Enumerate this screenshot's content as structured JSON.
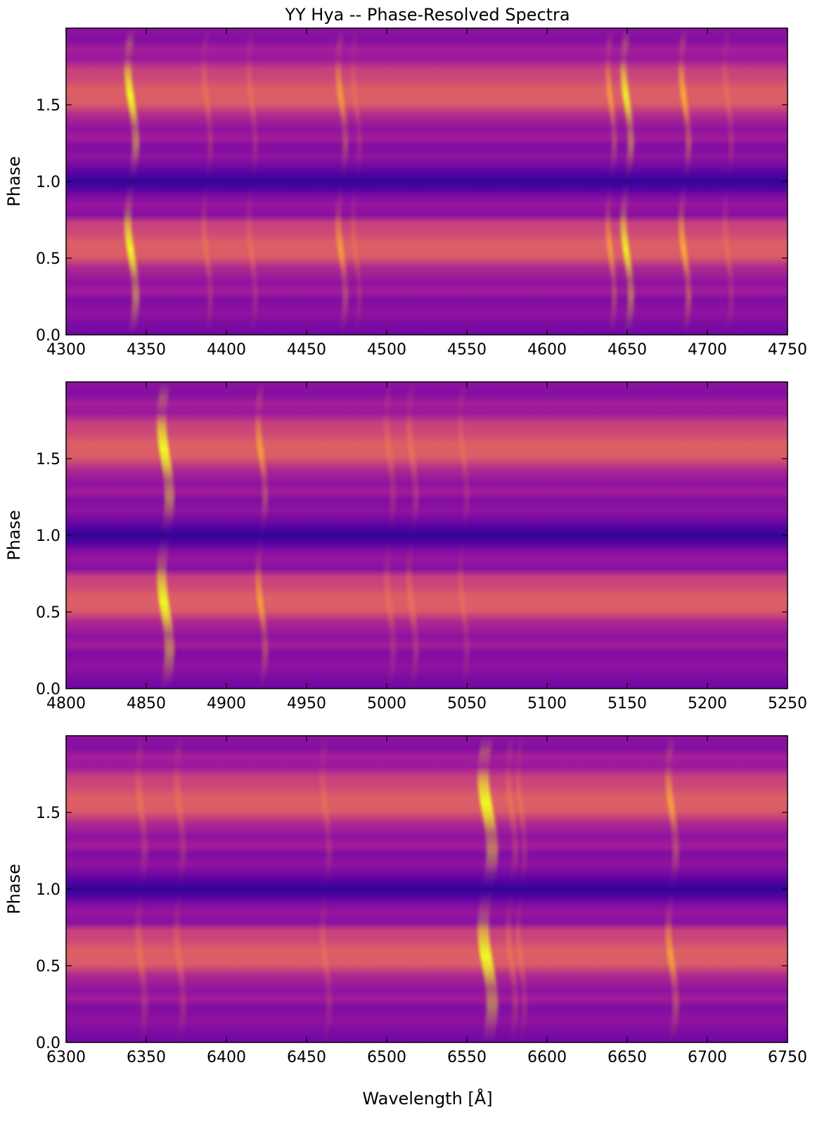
{
  "figure": {
    "title": "YY Hya -- Phase-Resolved Spectra",
    "xlabel": "Wavelength [Å]",
    "ylabel": "Phase",
    "colormap": "plasma",
    "colormap_stops": [
      "#0d0887",
      "#5c01a6",
      "#9c179e",
      "#cc4778",
      "#ed7953",
      "#fdb42f",
      "#f0f921"
    ]
  },
  "chart_data": [
    {
      "type": "heatmap",
      "xlabel": "",
      "ylabel": "Phase",
      "xlim": [
        4300,
        4750
      ],
      "ylim": [
        0.0,
        2.0
      ],
      "xticks": [
        4300,
        4350,
        4400,
        4450,
        4500,
        4550,
        4600,
        4650,
        4700,
        4750
      ],
      "xtick_labels": [
        "4300",
        "4350",
        "4400",
        "4450",
        "4500",
        "4550",
        "4600",
        "4650",
        "4700",
        "4750"
      ],
      "yticks": [
        0.0,
        0.5,
        1.0,
        1.5
      ],
      "ytick_labels": [
        "0.0",
        "0.5",
        "1.0",
        "1.5"
      ],
      "emission_lines": [
        {
          "wavelength": 4341,
          "strength": 1.0,
          "width": 2.2,
          "amplitude": 2.5
        },
        {
          "wavelength": 4388,
          "strength": 0.45,
          "width": 1.6,
          "amplitude": 2.0
        },
        {
          "wavelength": 4416,
          "strength": 0.35,
          "width": 1.6,
          "amplitude": 2.0
        },
        {
          "wavelength": 4472,
          "strength": 0.55,
          "width": 1.8,
          "amplitude": 2.2
        },
        {
          "wavelength": 4481,
          "strength": 0.3,
          "width": 1.4,
          "amplitude": 2.0
        },
        {
          "wavelength": 4640,
          "strength": 0.55,
          "width": 1.6,
          "amplitude": 2.0
        },
        {
          "wavelength": 4650,
          "strength": 0.9,
          "width": 2.0,
          "amplitude": 2.3
        },
        {
          "wavelength": 4686,
          "strength": 0.8,
          "width": 1.8,
          "amplitude": 2.3
        },
        {
          "wavelength": 4713,
          "strength": 0.3,
          "width": 1.6,
          "amplitude": 2.0
        }
      ]
    },
    {
      "type": "heatmap",
      "xlabel": "",
      "ylabel": "Phase",
      "xlim": [
        4800,
        5250
      ],
      "ylim": [
        0.0,
        2.0
      ],
      "xticks": [
        4800,
        4850,
        4900,
        4950,
        5000,
        5050,
        5100,
        5150,
        5200,
        5250
      ],
      "xtick_labels": [
        "4800",
        "4850",
        "4900",
        "4950",
        "5000",
        "5050",
        "5100",
        "5150",
        "5200",
        "5250"
      ],
      "yticks": [
        0.0,
        0.5,
        1.0,
        1.5
      ],
      "ytick_labels": [
        "0.0",
        "0.5",
        "1.0",
        "1.5"
      ],
      "emission_lines": [
        {
          "wavelength": 4862,
          "strength": 1.0,
          "width": 3.0,
          "amplitude": 2.5
        },
        {
          "wavelength": 4922,
          "strength": 0.6,
          "width": 1.8,
          "amplitude": 2.2
        },
        {
          "wavelength": 5002,
          "strength": 0.35,
          "width": 1.8,
          "amplitude": 2.0
        },
        {
          "wavelength": 5016,
          "strength": 0.5,
          "width": 1.8,
          "amplitude": 2.2
        },
        {
          "wavelength": 5048,
          "strength": 0.25,
          "width": 1.6,
          "amplitude": 2.0
        }
      ]
    },
    {
      "type": "heatmap",
      "xlabel": "Wavelength [Å]",
      "ylabel": "Phase",
      "xlim": [
        6300,
        6750
      ],
      "ylim": [
        0.0,
        2.0
      ],
      "xticks": [
        6300,
        6350,
        6400,
        6450,
        6500,
        6550,
        6600,
        6650,
        6700,
        6750
      ],
      "xtick_labels": [
        "6300",
        "6350",
        "6400",
        "6450",
        "6500",
        "6550",
        "6600",
        "6650",
        "6700",
        "6750"
      ],
      "yticks": [
        0.0,
        0.5,
        1.0,
        1.5
      ],
      "ytick_labels": [
        "0.0",
        "0.5",
        "1.0",
        "1.5"
      ],
      "emission_lines": [
        {
          "wavelength": 6347,
          "strength": 0.4,
          "width": 2.0,
          "amplitude": 2.0
        },
        {
          "wavelength": 6371,
          "strength": 0.35,
          "width": 2.0,
          "amplitude": 2.0
        },
        {
          "wavelength": 6462,
          "strength": 0.25,
          "width": 1.8,
          "amplitude": 2.0
        },
        {
          "wavelength": 6563,
          "strength": 1.0,
          "width": 3.6,
          "amplitude": 2.8
        },
        {
          "wavelength": 6578,
          "strength": 0.5,
          "width": 1.8,
          "amplitude": 2.2
        },
        {
          "wavelength": 6584,
          "strength": 0.35,
          "width": 1.6,
          "amplitude": 2.0
        },
        {
          "wavelength": 6678,
          "strength": 0.6,
          "width": 2.0,
          "amplitude": 2.3
        }
      ]
    }
  ]
}
